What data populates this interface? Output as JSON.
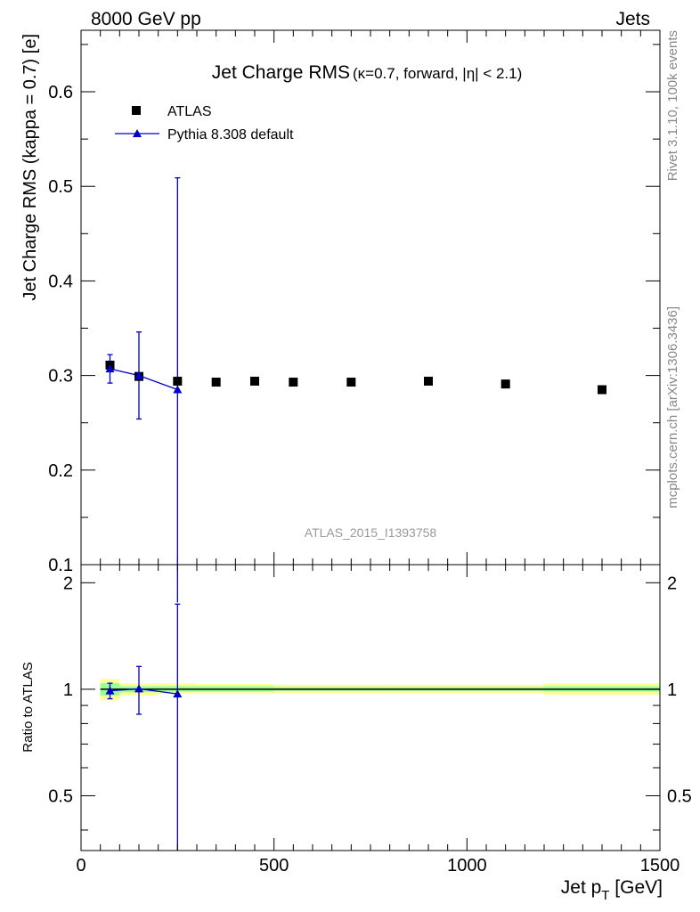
{
  "header": {
    "left": "8000 GeV pp",
    "right": "Jets"
  },
  "side_labels": {
    "rivet": "Rivet 3.1.10,  100k events",
    "mcplots": "mcplots.cern.ch [arXiv:1306.3436]"
  },
  "colors": {
    "atlas": "#000000",
    "pythia": "#0000cc",
    "band_outer": "#ffff99",
    "band_inner": "#99ff99"
  },
  "chart_data": [
    {
      "type": "scatter",
      "title": "Jet Charge RMS",
      "subtitle": "(κ=0.7, forward, |η| < 2.1)",
      "ylabel": "Jet Charge RMS (kappa = 0.7) [e]",
      "watermark": "ATLAS_2015_I1393758",
      "xlim": [
        0,
        1500
      ],
      "ylim": [
        0.1,
        0.665
      ],
      "yticks": [
        0.1,
        0.2,
        0.3,
        0.4,
        0.5,
        0.6
      ],
      "ytick_labels": [
        "0.1",
        "0.2",
        "0.3",
        "0.4",
        "0.5",
        "0.6"
      ],
      "grid": false,
      "legend_position": "top-left",
      "legend": [
        "ATLAS",
        "Pythia 8.308 default"
      ],
      "series": [
        {
          "name": "ATLAS",
          "marker": "square",
          "x": [
            75,
            150,
            250,
            350,
            450,
            550,
            700,
            900,
            1100,
            1350
          ],
          "y": [
            0.311,
            0.299,
            0.294,
            0.293,
            0.294,
            0.293,
            0.293,
            0.294,
            0.291,
            0.285
          ]
        },
        {
          "name": "Pythia 8.308 default",
          "marker": "triangle",
          "x": [
            75,
            150,
            250
          ],
          "y": [
            0.307,
            0.3,
            0.285
          ],
          "yerr_low": [
            0.292,
            0.254,
            0.06
          ],
          "yerr_high": [
            0.322,
            0.346,
            0.509
          ]
        }
      ]
    },
    {
      "type": "line",
      "xlabel": "Jet p_T [GeV]",
      "ylabel": "Ratio to ATLAS",
      "xlim": [
        0,
        1500
      ],
      "ylim": [
        0.35,
        2.25
      ],
      "xticks": [
        0,
        500,
        1000,
        1500
      ],
      "xtick_labels": [
        "0",
        "500",
        "1000",
        "1500"
      ],
      "yticks": [
        0.5,
        1,
        2
      ],
      "ytick_labels": [
        "0.5",
        "1",
        "2"
      ],
      "grid": false,
      "bands": [
        {
          "x0": 50,
          "x1": 100,
          "outer": [
            0.93,
            1.07
          ],
          "inner": [
            0.96,
            1.04
          ]
        },
        {
          "x0": 100,
          "x1": 200,
          "outer": [
            0.96,
            1.04
          ],
          "inner": [
            0.98,
            1.02
          ]
        },
        {
          "x0": 200,
          "x1": 300,
          "outer": [
            0.97,
            1.04
          ],
          "inner": [
            0.985,
            1.02
          ]
        },
        {
          "x0": 300,
          "x1": 500,
          "outer": [
            0.97,
            1.035
          ],
          "inner": [
            0.985,
            1.02
          ]
        },
        {
          "x0": 500,
          "x1": 800,
          "outer": [
            0.975,
            1.03
          ],
          "inner": [
            0.99,
            1.015
          ]
        },
        {
          "x0": 800,
          "x1": 1200,
          "outer": [
            0.975,
            1.03
          ],
          "inner": [
            0.99,
            1.015
          ]
        },
        {
          "x0": 1200,
          "x1": 1500,
          "outer": [
            0.965,
            1.04
          ],
          "inner": [
            0.985,
            1.02
          ]
        }
      ],
      "series": [
        {
          "name": "Pythia 8.308 default",
          "marker": "triangle",
          "x": [
            75,
            150,
            250
          ],
          "y": [
            0.99,
            1.003,
            0.97
          ],
          "yerr_low": [
            0.94,
            0.85,
            0.35
          ],
          "yerr_high": [
            1.04,
            1.16,
            1.74
          ]
        }
      ]
    }
  ]
}
